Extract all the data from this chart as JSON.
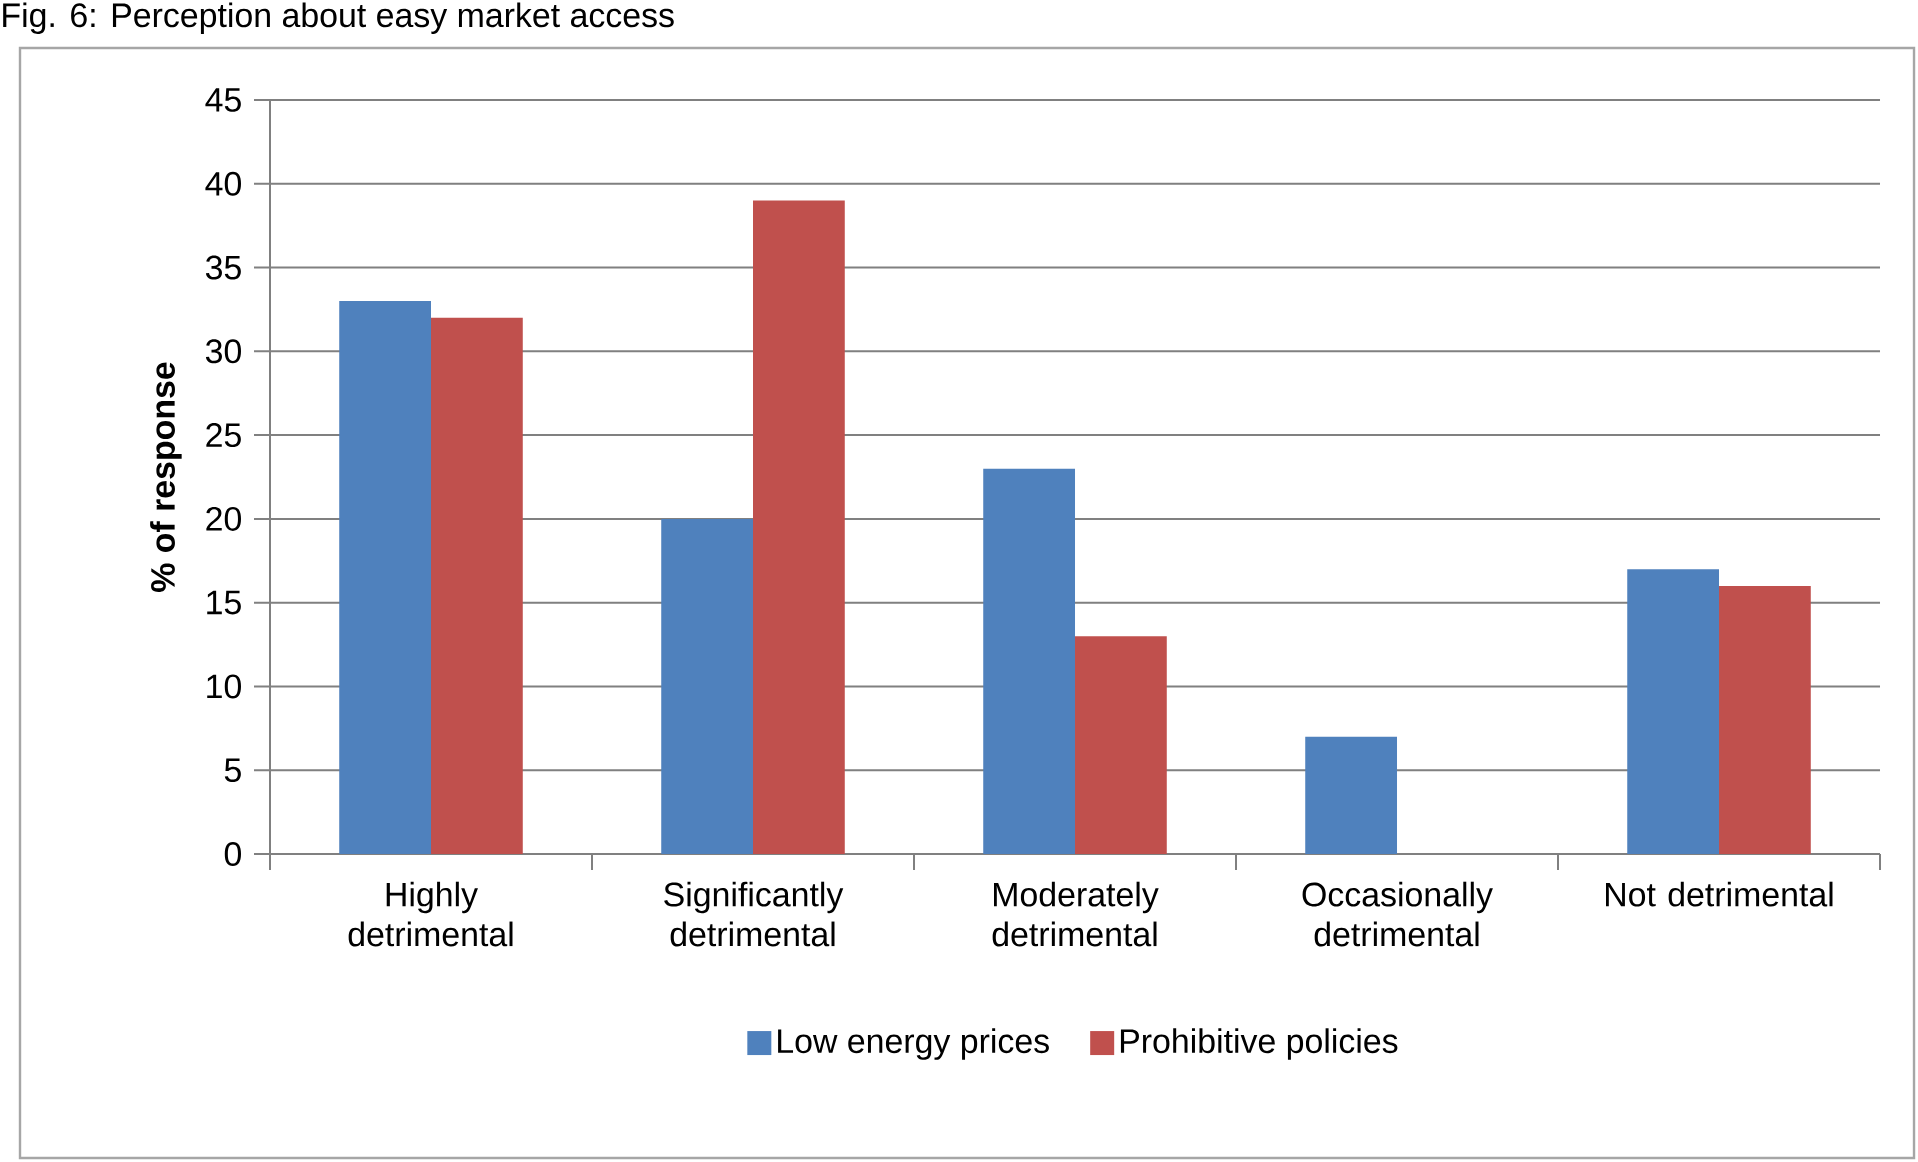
{
  "chart_data": {
    "type": "bar",
    "title": "Fig. 6: Perception about easy market access",
    "ylabel": "% of response",
    "categories": [
      "Highly detrimental",
      "Significantly detrimental",
      "Moderately detrimental",
      "Occasionally detrimental",
      "Not detrimental"
    ],
    "series": [
      {
        "name": "Low energy prices",
        "color": "#4f81bd",
        "values": [
          33,
          20,
          23,
          7,
          17
        ]
      },
      {
        "name": "Prohibitive policies",
        "color": "#c0504d",
        "values": [
          32,
          39,
          13,
          0,
          16
        ]
      }
    ],
    "ylim": [
      0,
      45
    ],
    "yticks": [
      0,
      5,
      10,
      15,
      20,
      25,
      30,
      35,
      40,
      45
    ],
    "grid": "y",
    "legend": "bottom"
  }
}
